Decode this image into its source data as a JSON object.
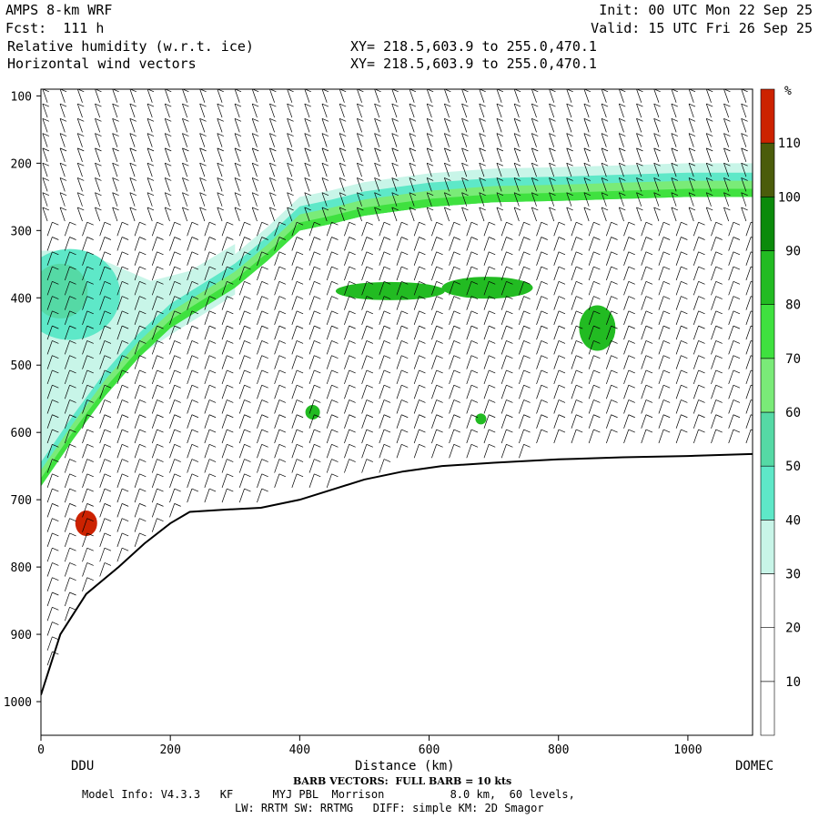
{
  "header": {
    "model": "AMPS 8-km WRF",
    "fcst": "Fcst:  111 h",
    "field1": "Relative humidity (w.r.t. ice)",
    "field2": "Horizontal wind vectors",
    "xy1": "XY= 218.5,603.9 to 255.0,470.1",
    "xy2": "XY= 218.5,603.9 to 255.0,470.1",
    "init": "Init: 00 UTC Mon 22 Sep 25",
    "valid": "Valid: 15 UTC Fri 26 Sep 25"
  },
  "footer": {
    "barb": "BARB VECTORS:  FULL BARB = 10 kts",
    "model_info": "Model Info: V4.3.3   KF      MYJ PBL  Morrison          8.0 km,  60 levels,",
    "physics": "LW: RRTM SW: RRTMG   DIFF: simple KM: 2D Smagor"
  },
  "colors": {
    "c0": "#ffffff",
    "c30": "#c8f5e8",
    "c40": "#5ee8c8",
    "c50": "#55d9a5",
    "c60": "#7aeb78",
    "c70": "#3fe13f",
    "c80": "#22bb22",
    "c90": "#0b8a0b",
    "c100": "#4b5c0b",
    "c110": "#cc2200"
  },
  "chart_data": {
    "type": "heatmap",
    "title": "Relative humidity (w.r.t. ice)",
    "xlabel": "Distance (km)",
    "ylabel": "",
    "xlim": [
      0,
      1100
    ],
    "ylim": [
      1050,
      90
    ],
    "x_ticks": [
      0,
      200,
      400,
      600,
      800,
      1000
    ],
    "y_ticks": [
      100,
      200,
      300,
      400,
      500,
      600,
      700,
      800,
      900,
      1000
    ],
    "x_endpoints": {
      "left": "DDU",
      "right": "DOMEC"
    },
    "colorbar": {
      "unit": "%",
      "levels": [
        10,
        20,
        30,
        40,
        50,
        60,
        70,
        80,
        90,
        100,
        110
      ]
    },
    "terrain_surface": [
      {
        "x": 0,
        "p": 990
      },
      {
        "x": 30,
        "p": 900
      },
      {
        "x": 70,
        "p": 840
      },
      {
        "x": 120,
        "p": 800
      },
      {
        "x": 160,
        "p": 765
      },
      {
        "x": 200,
        "p": 735
      },
      {
        "x": 230,
        "p": 718
      },
      {
        "x": 280,
        "p": 715
      },
      {
        "x": 340,
        "p": 712
      },
      {
        "x": 400,
        "p": 700
      },
      {
        "x": 450,
        "p": 685
      },
      {
        "x": 500,
        "p": 670
      },
      {
        "x": 560,
        "p": 658
      },
      {
        "x": 620,
        "p": 650
      },
      {
        "x": 700,
        "p": 645
      },
      {
        "x": 800,
        "p": 640
      },
      {
        "x": 900,
        "p": 637
      },
      {
        "x": 1000,
        "p": 635
      },
      {
        "x": 1100,
        "p": 632
      }
    ],
    "moist_top": [
      {
        "x": 0,
        "p": 680
      },
      {
        "x": 50,
        "p": 610
      },
      {
        "x": 100,
        "p": 545
      },
      {
        "x": 150,
        "p": 490
      },
      {
        "x": 200,
        "p": 445
      },
      {
        "x": 250,
        "p": 415
      },
      {
        "x": 300,
        "p": 385
      },
      {
        "x": 350,
        "p": 345
      },
      {
        "x": 400,
        "p": 300
      },
      {
        "x": 450,
        "p": 290
      },
      {
        "x": 500,
        "p": 278
      },
      {
        "x": 600,
        "p": 265
      },
      {
        "x": 700,
        "p": 258
      },
      {
        "x": 800,
        "p": 256
      },
      {
        "x": 900,
        "p": 253
      },
      {
        "x": 1000,
        "p": 250
      },
      {
        "x": 1100,
        "p": 250
      }
    ]
  }
}
